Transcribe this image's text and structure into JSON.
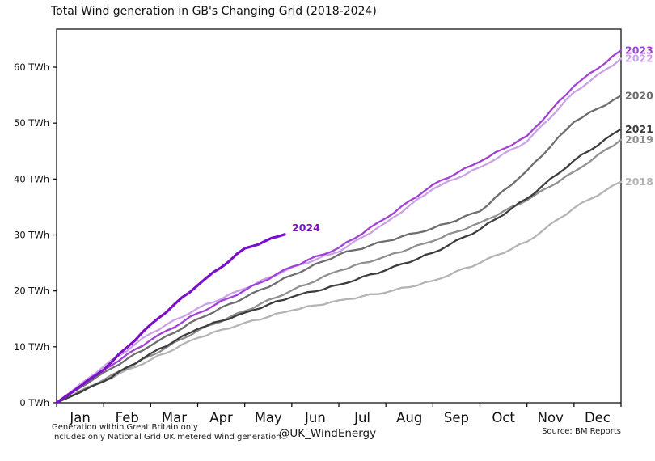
{
  "title": "Total Wind generation in GB's Changing Grid (2018-2024)",
  "footnotes": {
    "line1": "Generation within Great Britain only",
    "line2": "Includes only National Grid UK metered Wind generation",
    "credit": "@UK_WindEnergy",
    "source": "Source: BM Reports"
  },
  "chart_data": {
    "type": "line",
    "title": "Total Wind generation in GB's Changing Grid (2018-2024)",
    "xlabel": "",
    "ylabel": "",
    "x_axis": {
      "months": [
        "Jan",
        "Feb",
        "Mar",
        "Apr",
        "May",
        "Jun",
        "Jul",
        "Aug",
        "Sep",
        "Oct",
        "Nov",
        "Dec"
      ],
      "range_months": [
        0,
        12
      ]
    },
    "y_axis": {
      "tick_values": [
        0,
        10,
        20,
        30,
        40,
        50,
        60
      ],
      "tick_labels": [
        "0 TWh",
        "10 TWh",
        "20 TWh",
        "30 TWh",
        "40 TWh",
        "50 TWh",
        "60 TWh"
      ],
      "range_twh": [
        0,
        66.8
      ]
    },
    "grid": "off",
    "legend_position": "inline-right-edge-labels",
    "series": [
      {
        "name": "2018",
        "color": "#b4b4b4",
        "label_position": "right-edge",
        "x_months": [
          0,
          1,
          2,
          3,
          4,
          5,
          6,
          7,
          8,
          9,
          10,
          11,
          12
        ],
        "cumulative_twh": [
          0,
          3.9,
          7.7,
          11.6,
          14.3,
          16.5,
          18.3,
          19.7,
          21.8,
          25.0,
          28.8,
          34.8,
          39.5
        ]
      },
      {
        "name": "2019",
        "color": "#909090",
        "label_position": "right-edge",
        "x_months": [
          0,
          1,
          2,
          3,
          4,
          5,
          6,
          7,
          8,
          9,
          10,
          11,
          12
        ],
        "cumulative_twh": [
          0,
          4.1,
          8.4,
          12.9,
          16.4,
          20.1,
          23.6,
          26.2,
          28.9,
          32.2,
          36.2,
          41.3,
          47.0
        ]
      },
      {
        "name": "2020",
        "color": "#6e6e6e",
        "label_position": "right-edge",
        "x_months": [
          0,
          1,
          2,
          3,
          4,
          5,
          6,
          7,
          8,
          9,
          10,
          11,
          12
        ],
        "cumulative_twh": [
          0,
          5.4,
          10.2,
          15.0,
          18.8,
          22.8,
          26.5,
          28.9,
          31.2,
          34.2,
          41.5,
          50.2,
          54.9
        ]
      },
      {
        "name": "2021",
        "color": "#3d3d3d",
        "label_position": "right-edge",
        "x_months": [
          0,
          1,
          2,
          3,
          4,
          5,
          6,
          7,
          8,
          9,
          10,
          11,
          12
        ],
        "cumulative_twh": [
          0,
          3.8,
          8.8,
          13.2,
          16.1,
          18.9,
          21.1,
          23.7,
          26.8,
          31.0,
          36.5,
          43.3,
          48.9
        ]
      },
      {
        "name": "2022",
        "color": "#c9a2e8",
        "label_position": "right-edge",
        "x_months": [
          0,
          1,
          2,
          3,
          4,
          5,
          6,
          7,
          8,
          9,
          10,
          11,
          12
        ],
        "cumulative_twh": [
          0,
          6.5,
          12.4,
          16.9,
          20.4,
          24.2,
          27.0,
          32.2,
          38.2,
          42.1,
          46.7,
          55.5,
          61.5
        ]
      },
      {
        "name": "2023",
        "color": "#a142d6",
        "label_position": "right-edge",
        "x_months": [
          0,
          1,
          2,
          3,
          4,
          5,
          6,
          7,
          8,
          9,
          10,
          11,
          12
        ],
        "cumulative_twh": [
          0,
          5.9,
          11.2,
          16.0,
          20.1,
          24.3,
          27.7,
          33.0,
          39.0,
          43.1,
          47.7,
          56.6,
          63.0
        ]
      },
      {
        "name": "2024",
        "color": "#7c0fc9",
        "label_position": "inline",
        "emphasis": true,
        "x_months": [
          0,
          1,
          2,
          3,
          4,
          4.85
        ],
        "cumulative_twh": [
          0,
          5.9,
          14.0,
          21.0,
          27.6,
          30.1
        ]
      }
    ]
  }
}
